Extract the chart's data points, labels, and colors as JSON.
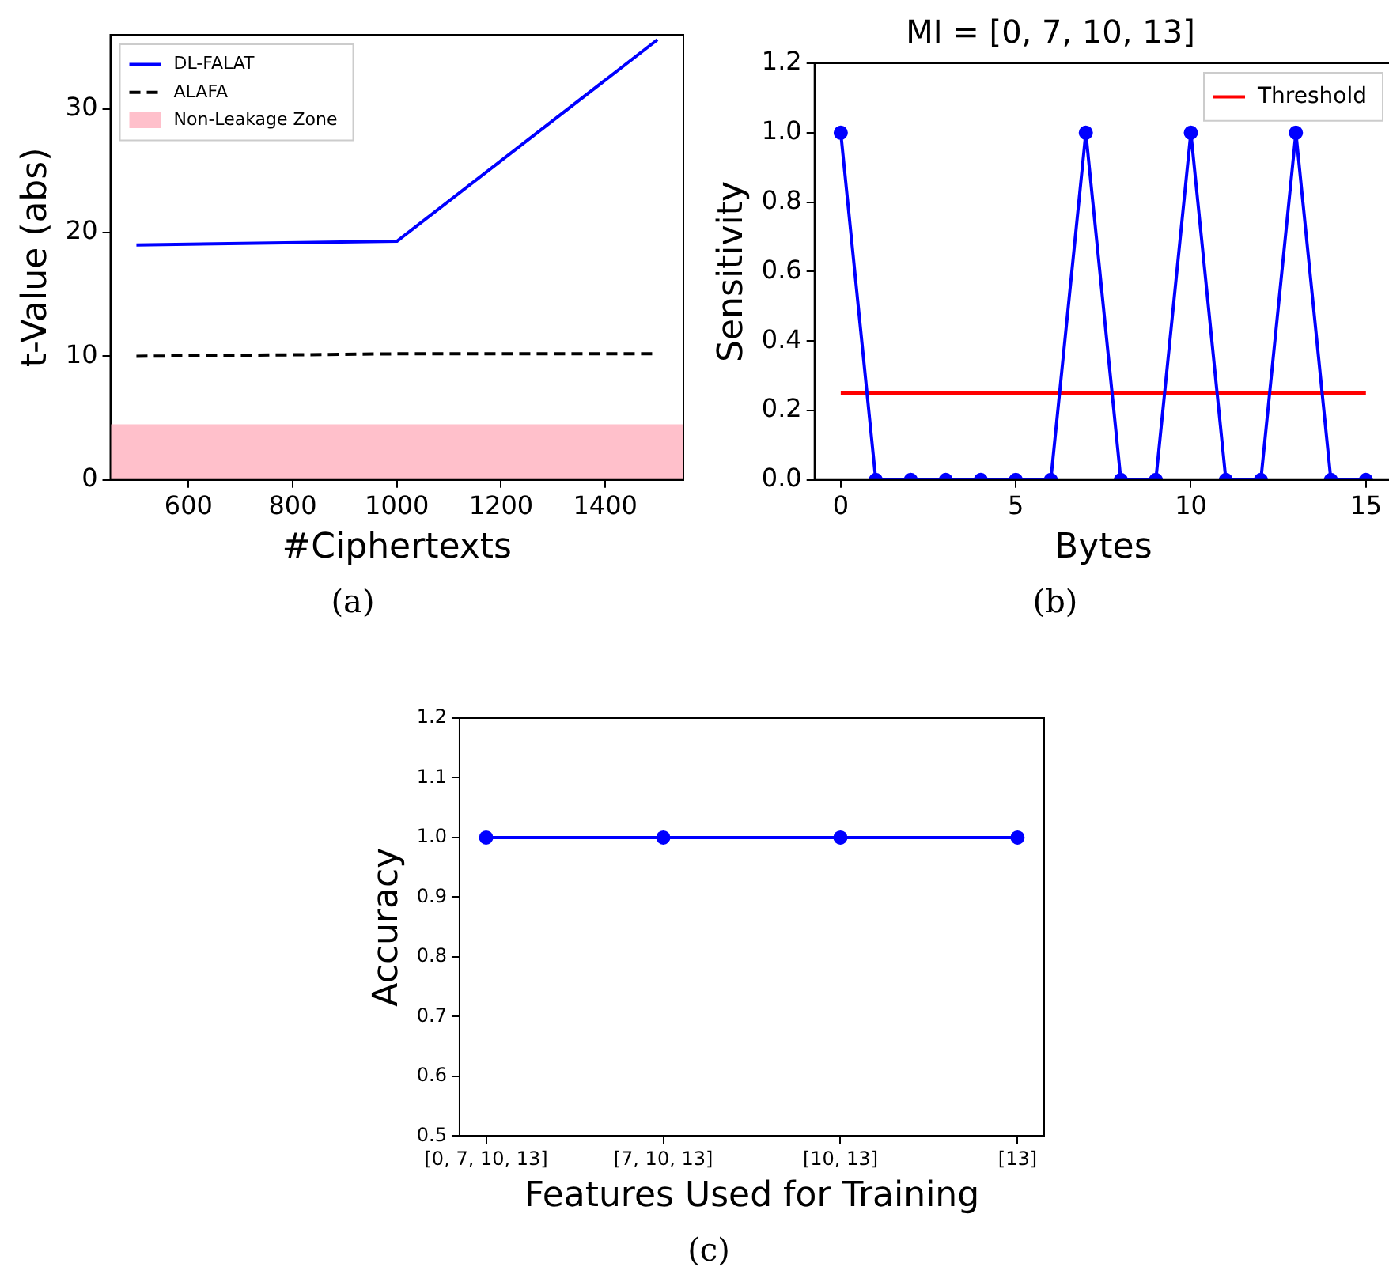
{
  "chart_data": [
    {
      "type": "line",
      "xlabel": "#Ciphertexts",
      "ylabel": "t-Value (abs)",
      "x": [
        500,
        1000,
        1500
      ],
      "xlim": [
        450,
        1550
      ],
      "xticks": [
        600,
        800,
        1000,
        1200,
        1400
      ],
      "ylim": [
        0,
        36
      ],
      "yticks": [
        0,
        10,
        20,
        30
      ],
      "marker": "none",
      "legend": "top left",
      "series": [
        {
          "name": "DL-FALAT",
          "color": "#0000ff",
          "values": [
            19,
            19.3,
            35.6
          ]
        },
        {
          "name": "ALAFA",
          "color": "#000000",
          "values": [
            10,
            10.2,
            10.2
          ],
          "line_style": "dashed"
        }
      ],
      "bands": [
        {
          "axis": "y",
          "from": 0,
          "to": 4.5,
          "label": "Non-Leakage Zone",
          "color": "#ffc0cb"
        }
      ],
      "annotations": [
        "(a)"
      ]
    },
    {
      "type": "line",
      "title": "MI = [0, 7, 10, 13]",
      "xlabel": "Bytes",
      "ylabel": "Sensitivity",
      "x": [
        0,
        1,
        2,
        3,
        4,
        5,
        6,
        7,
        8,
        9,
        10,
        11,
        12,
        13,
        14,
        15
      ],
      "xlim": [
        -0.75,
        15.75
      ],
      "xticks": [
        0,
        5,
        10,
        15
      ],
      "ylim": [
        0,
        1.2
      ],
      "yticks": [
        {
          "value": 0,
          "label": "0.0"
        },
        {
          "value": 0.2,
          "label": "0.2"
        },
        {
          "value": 0.4,
          "label": "0.4"
        },
        {
          "value": 0.6,
          "label": "0.6"
        },
        {
          "value": 0.8,
          "label": "0.8"
        },
        {
          "value": 1,
          "label": "1.0"
        },
        {
          "value": 1.2,
          "label": "1.2"
        }
      ],
      "marker": "circle",
      "legend": "top right",
      "series": [
        {
          "color": "#0000ff",
          "values": [
            1,
            0,
            0,
            0,
            0,
            0,
            0,
            1,
            0,
            0,
            1,
            0,
            0,
            1,
            0,
            0
          ]
        },
        {
          "name": "Threshold",
          "color": "#ff0000",
          "x": [
            0,
            15
          ],
          "values": [
            0.25,
            0.25
          ],
          "marker": "none"
        }
      ],
      "annotations": [
        "(b)"
      ]
    },
    {
      "type": "line",
      "xlabel": "Features Used for Training",
      "ylabel": "Accuracy",
      "categories": [
        "[0, 7, 10, 13]",
        "[7, 10, 13]",
        "[10, 13]",
        "[13]"
      ],
      "ylim": [
        0.5,
        1.2
      ],
      "yticks": [
        0.5,
        0.6,
        0.7,
        0.8,
        0.9,
        {
          "value": 1,
          "label": "1.0"
        },
        1.1,
        1.2
      ],
      "marker": "circle",
      "series": [
        {
          "color": "#0000ff",
          "values": [
            1,
            1,
            1,
            1
          ]
        }
      ],
      "annotations": [
        "(c)"
      ]
    }
  ]
}
